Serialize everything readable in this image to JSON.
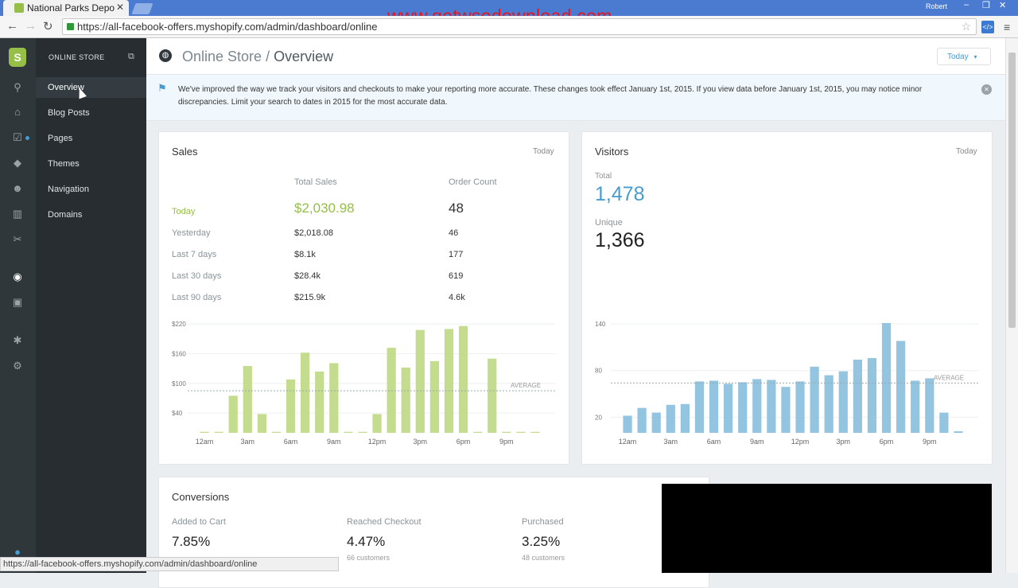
{
  "browser": {
    "tab_title": "National Parks Depo",
    "watermark": "www.getwsodownload.com",
    "user": "Robert",
    "url": "https://all-facebook-offers.myshopify.com/admin/dashboard/online",
    "status_url": "https://all-facebook-offers.myshopify.com/admin/dashboard/online"
  },
  "subnav": {
    "title": "ONLINE STORE",
    "items": [
      {
        "label": "Overview",
        "active": true
      },
      {
        "label": "Blog Posts"
      },
      {
        "label": "Pages"
      },
      {
        "label": "Themes"
      },
      {
        "label": "Navigation"
      },
      {
        "label": "Domains"
      }
    ]
  },
  "header": {
    "section": "Online Store",
    "separator": "/",
    "page": "Overview",
    "date_button": "Today"
  },
  "notice": {
    "text": "We've improved the way we track your visitors and checkouts to make your reporting more accurate. These changes took effect January 1st, 2015. If you view data before January 1st, 2015, you may notice minor discrepancies. Limit your search to dates in 2015 for the most accurate data."
  },
  "sales": {
    "title": "Sales",
    "period": "Today",
    "col_total": "Total Sales",
    "col_orders": "Order Count",
    "rows": [
      {
        "label": "Today",
        "total": "$2,030.98",
        "orders": "48"
      },
      {
        "label": "Yesterday",
        "total": "$2,018.08",
        "orders": "46"
      },
      {
        "label": "Last 7 days",
        "total": "$8.1k",
        "orders": "177"
      },
      {
        "label": "Last 30 days",
        "total": "$28.4k",
        "orders": "619"
      },
      {
        "label": "Last 90 days",
        "total": "$215.9k",
        "orders": "4.6k"
      }
    ]
  },
  "visitors": {
    "title": "Visitors",
    "period": "Today",
    "total_label": "Total",
    "total_value": "1,478",
    "unique_label": "Unique",
    "unique_value": "1,366"
  },
  "conversions": {
    "title": "Conversions",
    "items": [
      {
        "label": "Added to Cart",
        "value": "7.85%",
        "sub": ""
      },
      {
        "label": "Reached Checkout",
        "value": "4.47%",
        "sub": "66 customers"
      },
      {
        "label": "Purchased",
        "value": "3.25%",
        "sub": "48 customers"
      }
    ]
  },
  "colors": {
    "sales_bar": "#c3dc8e",
    "sales_today": "#95bf47",
    "visitor_bar": "#93c4e0",
    "accent": "#479ccf"
  },
  "chart_data": [
    {
      "type": "bar",
      "name": "sales-chart",
      "categories": [
        "12am",
        "1am",
        "2am",
        "3am",
        "4am",
        "5am",
        "6am",
        "7am",
        "8am",
        "9am",
        "10am",
        "11am",
        "12pm",
        "1pm",
        "2pm",
        "3pm",
        "4pm",
        "5pm",
        "6pm",
        "7pm",
        "8pm",
        "9pm",
        "10pm",
        "11pm"
      ],
      "tick_labels": [
        "12am",
        "3am",
        "6am",
        "9am",
        "12pm",
        "3pm",
        "6pm",
        "9pm"
      ],
      "y_ticks": [
        "$220",
        "$160",
        "$100",
        "$40"
      ],
      "y_tick_values": [
        220,
        160,
        100,
        40
      ],
      "values": [
        2,
        2,
        75,
        135,
        38,
        2,
        108,
        162,
        124,
        141,
        2,
        2,
        38,
        172,
        132,
        208,
        145,
        210,
        216,
        2,
        150,
        2,
        2,
        2
      ],
      "average": 85,
      "average_label": "AVERAGE",
      "ylim": [
        0,
        222
      ]
    },
    {
      "type": "bar",
      "name": "visitors-chart",
      "categories": [
        "12am",
        "1am",
        "2am",
        "3am",
        "4am",
        "5am",
        "6am",
        "7am",
        "8am",
        "9am",
        "10am",
        "11am",
        "12pm",
        "1pm",
        "2pm",
        "3pm",
        "4pm",
        "5pm",
        "6pm",
        "7pm",
        "8pm",
        "9pm",
        "10pm",
        "11pm"
      ],
      "tick_labels": [
        "12am",
        "3am",
        "6am",
        "9am",
        "12pm",
        "3pm",
        "6pm",
        "9pm"
      ],
      "y_ticks": [
        "140",
        "80",
        "20"
      ],
      "y_tick_values": [
        140,
        80,
        20
      ],
      "values": [
        22,
        32,
        26,
        36,
        37,
        66,
        67,
        63,
        65,
        69,
        68,
        59,
        66,
        85,
        74,
        79,
        94,
        96,
        141,
        118,
        67,
        70,
        26,
        2
      ],
      "average": 64,
      "average_label": "AVERAGE",
      "ylim": [
        0,
        141
      ]
    }
  ]
}
